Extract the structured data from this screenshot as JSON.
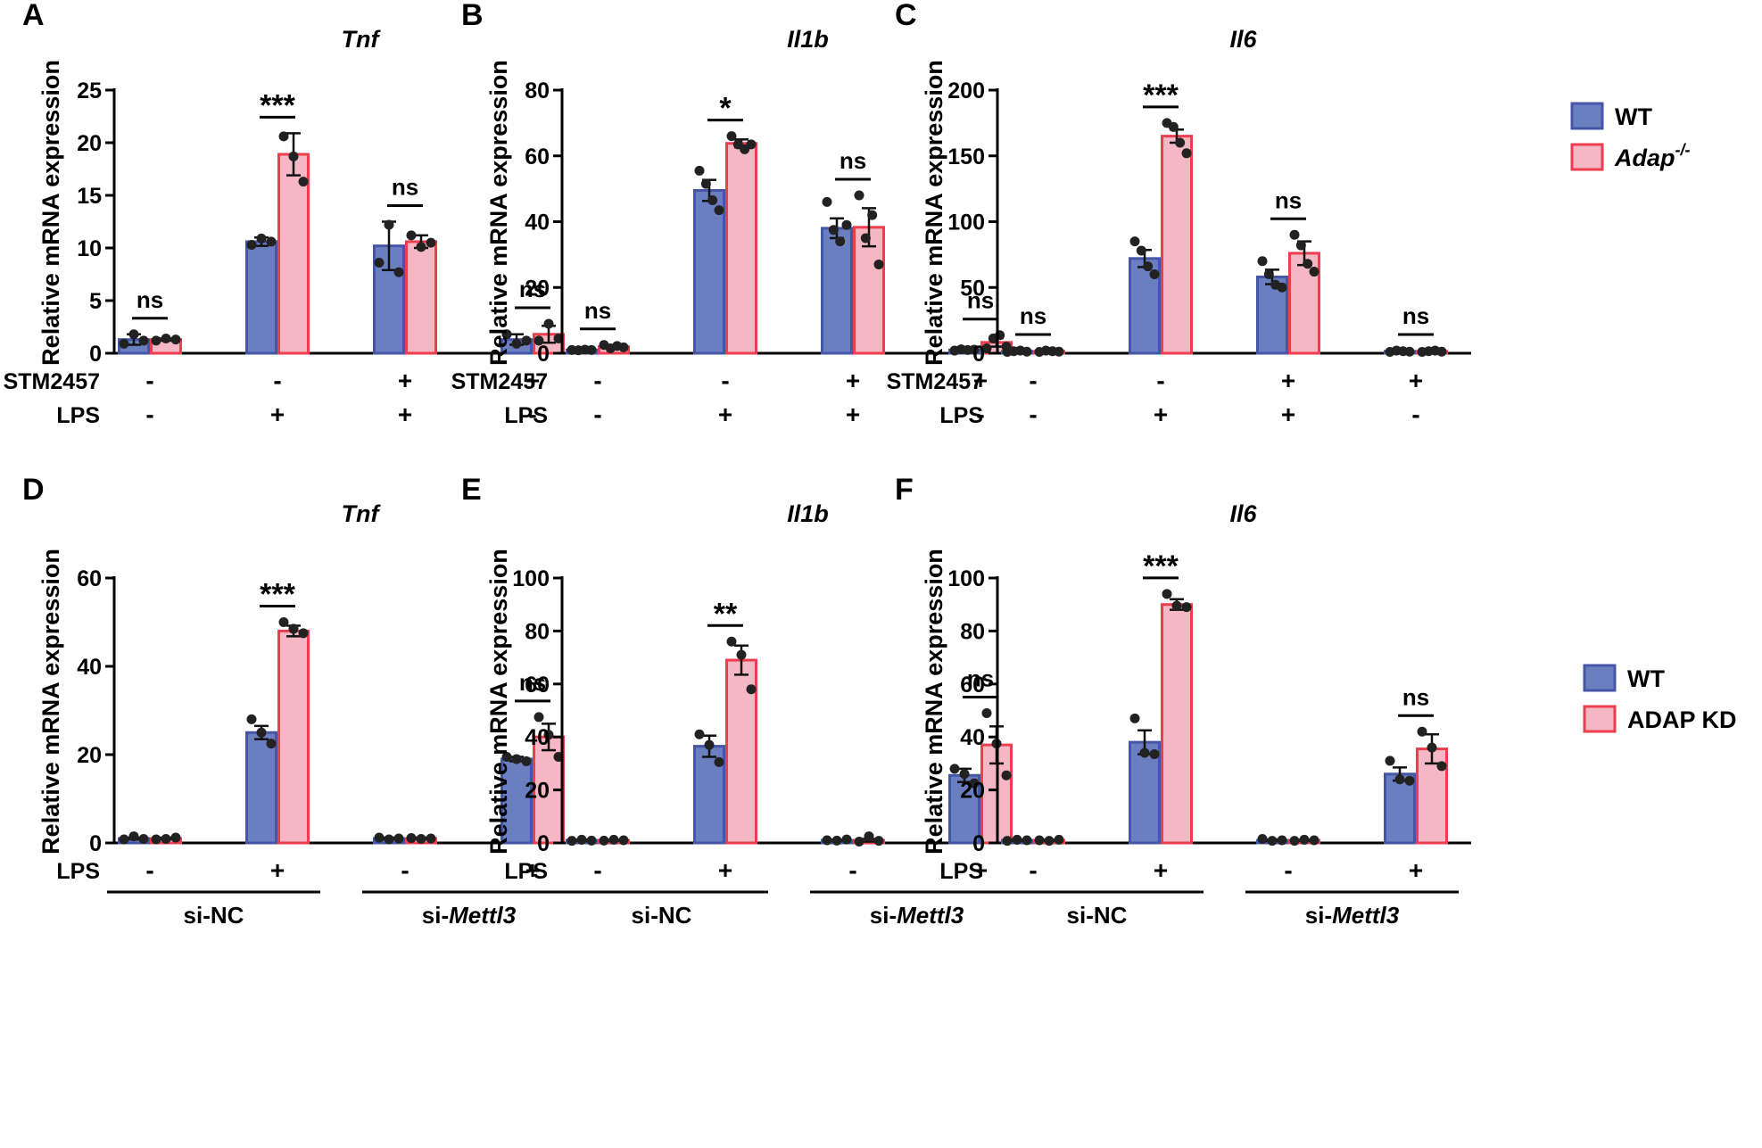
{
  "colors": {
    "wt_fill": "#6b7ec0",
    "wt_edge": "#4556a6",
    "ko_fill": "#f4b7c3",
    "ko_edge": "#ec3e4f",
    "dot": "#222222"
  },
  "legends": [
    {
      "entries": [
        {
          "text": "WT",
          "sup": ""
        },
        {
          "text": "Adap",
          "sup": "-/-",
          "italic": true
        }
      ]
    },
    {
      "entries": [
        {
          "text": "WT",
          "sup": ""
        },
        {
          "text": "ADAP KD",
          "sup": ""
        }
      ]
    }
  ],
  "row_labels_top": {
    "stm": "STM2457",
    "lps": "LPS"
  },
  "row_labels_bottom": {
    "lps": "LPS",
    "group1": "si-NC",
    "group2_prefix": "si-",
    "group2_italic": "Mettl3"
  },
  "ylabel": "Relative mRNA expression",
  "chart_data": [
    {
      "panel": "A",
      "title": "Tnf",
      "type": "bar",
      "ylabel": "Relative mRNA expression",
      "ylim": [
        0,
        25
      ],
      "yticks": [
        0,
        5,
        10,
        15,
        20,
        25
      ],
      "categories": [
        "STM2457 - / LPS -",
        "STM2457 - / LPS +",
        "STM2457 + / LPS +",
        "STM2457 + / LPS -"
      ],
      "stm": [
        "-",
        "-",
        "+",
        "+"
      ],
      "lps": [
        "-",
        "+",
        "+",
        "-"
      ],
      "series": [
        {
          "name": "WT",
          "values": [
            1.3,
            10.6,
            10.2,
            1.3
          ],
          "errors": [
            0.5,
            0.4,
            2.3,
            0.5
          ],
          "points": [
            [
              0.9,
              1.8,
              1.2
            ],
            [
              10.3,
              10.9,
              10.6
            ],
            [
              8.6,
              12.2,
              7.7
            ],
            [
              1.8,
              0.9,
              1.2
            ]
          ]
        },
        {
          "name": "Adap-/-",
          "values": [
            1.3,
            18.9,
            10.6,
            1.8
          ],
          "errors": [
            0.1,
            2.0,
            0.6,
            0.8
          ],
          "points": [
            [
              1.2,
              1.4,
              1.3
            ],
            [
              20.6,
              18.7,
              16.3
            ],
            [
              11.2,
              10.1,
              10.5
            ],
            [
              1.2,
              2.8,
              1.4
            ]
          ]
        }
      ],
      "significance": [
        "ns",
        "***",
        "ns",
        "ns"
      ]
    },
    {
      "panel": "B",
      "title": "Il1b",
      "type": "bar",
      "ylabel": "Relative mRNA expression",
      "ylim": [
        0,
        80
      ],
      "yticks": [
        0,
        20,
        40,
        60,
        80
      ],
      "categories": [
        "STM2457 - / LPS -",
        "STM2457 - / LPS +",
        "STM2457 + / LPS +",
        "STM2457 + / LPS -"
      ],
      "stm": [
        "-",
        "-",
        "+",
        "+"
      ],
      "lps": [
        "-",
        "+",
        "+",
        "-"
      ],
      "series": [
        {
          "name": "WT",
          "values": [
            1.0,
            49.5,
            38.0,
            1.0
          ],
          "errors": [
            0.2,
            3.2,
            3.0,
            0.2
          ],
          "points": [
            [
              1.0,
              0.9,
              1.1,
              1.0
            ],
            [
              55.5,
              51.5,
              46.5,
              43.5
            ],
            [
              46.0,
              37.5,
              34.0,
              39.0
            ],
            [
              0.8,
              1.2,
              1.0,
              1.1
            ]
          ]
        },
        {
          "name": "Adap-/-",
          "values": [
            2.0,
            63.8,
            38.3,
            3.3
          ],
          "errors": [
            0.4,
            1.2,
            5.8,
            1.3
          ],
          "points": [
            [
              2.5,
              1.5,
              2.2,
              1.8
            ],
            [
              66.0,
              63.5,
              62.0,
              63.5
            ],
            [
              48.0,
              35.0,
              42.0,
              27.0
            ],
            [
              1.5,
              4.5,
              5.5,
              2.0
            ]
          ]
        }
      ],
      "significance": [
        "ns",
        "*",
        "ns",
        "ns"
      ]
    },
    {
      "panel": "C",
      "title": "Il6",
      "type": "bar",
      "ylabel": "Relative mRNA expression",
      "ylim": [
        0,
        200
      ],
      "yticks": [
        0,
        50,
        100,
        150,
        200
      ],
      "categories": [
        "STM2457 - / LPS -",
        "STM2457 - / LPS +",
        "STM2457 + / LPS +",
        "STM2457 + / LPS -"
      ],
      "stm": [
        "-",
        "-",
        "+",
        "+"
      ],
      "lps": [
        "-",
        "+",
        "+",
        "-"
      ],
      "series": [
        {
          "name": "WT",
          "values": [
            1.5,
            72.0,
            58.0,
            1.5
          ],
          "errors": [
            0.5,
            6.5,
            5.5,
            0.5
          ],
          "points": [
            [
              1.0,
              1.5,
              2.0,
              1.2
            ],
            [
              85.0,
              78.0,
              66.0,
              60.0
            ],
            [
              70.0,
              60.0,
              52.0,
              50.0
            ],
            [
              1.0,
              2.0,
              1.5,
              1.2
            ]
          ]
        },
        {
          "name": "Adap-/-",
          "values": [
            1.5,
            165.0,
            76.0,
            1.5
          ],
          "errors": [
            0.5,
            5.0,
            9.0,
            0.5
          ],
          "points": [
            [
              1.0,
              2.0,
              1.5,
              1.2
            ],
            [
              175.0,
              172.0,
              160.0,
              152.0
            ],
            [
              90.0,
              82.0,
              68.0,
              62.0
            ],
            [
              1.0,
              1.5,
              2.0,
              1.2
            ]
          ]
        }
      ],
      "significance": [
        "ns",
        "***",
        "ns",
        "ns"
      ]
    },
    {
      "panel": "D",
      "title": "Tnf",
      "type": "bar",
      "ylabel": "Relative mRNA expression",
      "ylim": [
        0,
        60
      ],
      "yticks": [
        0,
        20,
        40,
        60
      ],
      "categories": [
        "si-NC LPS -",
        "si-NC LPS +",
        "si-Mettl3 LPS -",
        "si-Mettl3 LPS +"
      ],
      "lps": [
        "-",
        "+",
        "-",
        "+"
      ],
      "series": [
        {
          "name": "WT",
          "values": [
            1.0,
            25.0,
            1.0,
            19.0
          ],
          "errors": [
            0.2,
            1.5,
            0.2,
            0.5
          ],
          "points": [
            [
              0.8,
              1.5,
              0.9
            ],
            [
              28.0,
              25.0,
              22.5
            ],
            [
              1.2,
              0.8,
              1.0
            ],
            [
              19.5,
              19.0,
              18.5
            ]
          ]
        },
        {
          "name": "ADAP KD",
          "values": [
            1.0,
            48.0,
            1.0,
            24.0
          ],
          "errors": [
            0.2,
            1.2,
            0.2,
            3.0
          ],
          "points": [
            [
              0.8,
              0.9,
              1.2
            ],
            [
              50.0,
              48.5,
              47.5
            ],
            [
              1.1,
              0.9,
              1.0
            ],
            [
              28.5,
              24.5,
              19.5
            ]
          ]
        }
      ],
      "significance": [
        "",
        "***",
        "",
        "ns"
      ]
    },
    {
      "panel": "E",
      "title": "Il1b",
      "type": "bar",
      "ylabel": "Relative mRNA expression",
      "ylim": [
        0,
        100
      ],
      "yticks": [
        0,
        20,
        40,
        60,
        80,
        100
      ],
      "categories": [
        "si-NC LPS -",
        "si-NC LPS +",
        "si-Mettl3 LPS -",
        "si-Mettl3 LPS +"
      ],
      "lps": [
        "-",
        "+",
        "-",
        "+"
      ],
      "series": [
        {
          "name": "WT",
          "values": [
            1.0,
            36.5,
            1.0,
            25.5
          ],
          "errors": [
            0.2,
            4.0,
            0.2,
            2.5
          ],
          "points": [
            [
              0.8,
              1.2,
              0.9
            ],
            [
              41.0,
              37.0,
              30.5
            ],
            [
              1.0,
              0.9,
              1.3
            ],
            [
              28.0,
              26.0,
              22.5
            ]
          ]
        },
        {
          "name": "ADAP KD",
          "values": [
            1.0,
            69.0,
            1.0,
            37.0
          ],
          "errors": [
            0.2,
            5.5,
            0.5,
            7.0
          ],
          "points": [
            [
              0.9,
              1.2,
              1.0
            ],
            [
              76.0,
              71.0,
              58.0
            ],
            [
              0.5,
              2.5,
              0.8
            ],
            [
              49.0,
              37.5,
              25.5
            ]
          ]
        }
      ],
      "significance": [
        "",
        "**",
        "",
        "ns"
      ]
    },
    {
      "panel": "F",
      "title": "Il6",
      "type": "bar",
      "ylabel": "Relative mRNA expression",
      "ylim": [
        0,
        100
      ],
      "yticks": [
        0,
        20,
        40,
        60,
        80,
        100
      ],
      "categories": [
        "si-NC LPS -",
        "si-NC LPS +",
        "si-Mettl3 LPS -",
        "si-Mettl3 LPS +"
      ],
      "lps": [
        "-",
        "+",
        "-",
        "+"
      ],
      "series": [
        {
          "name": "WT",
          "values": [
            1.0,
            38.0,
            1.0,
            26.0
          ],
          "errors": [
            0.2,
            4.5,
            0.3,
            2.5
          ],
          "points": [
            [
              0.8,
              1.2,
              1.0
            ],
            [
              47.0,
              34.0,
              33.5
            ],
            [
              1.5,
              0.8,
              1.0
            ],
            [
              31.0,
              24.0,
              23.5
            ]
          ]
        },
        {
          "name": "ADAP KD",
          "values": [
            1.0,
            90.0,
            1.0,
            35.5
          ],
          "errors": [
            0.2,
            2.0,
            0.2,
            5.5
          ],
          "points": [
            [
              1.0,
              0.8,
              1.2
            ],
            [
              94.0,
              89.5,
              89.0
            ],
            [
              0.8,
              1.2,
              1.0
            ],
            [
              42.0,
              36.0,
              29.0
            ]
          ]
        }
      ],
      "significance": [
        "",
        "***",
        "",
        "ns"
      ]
    }
  ]
}
